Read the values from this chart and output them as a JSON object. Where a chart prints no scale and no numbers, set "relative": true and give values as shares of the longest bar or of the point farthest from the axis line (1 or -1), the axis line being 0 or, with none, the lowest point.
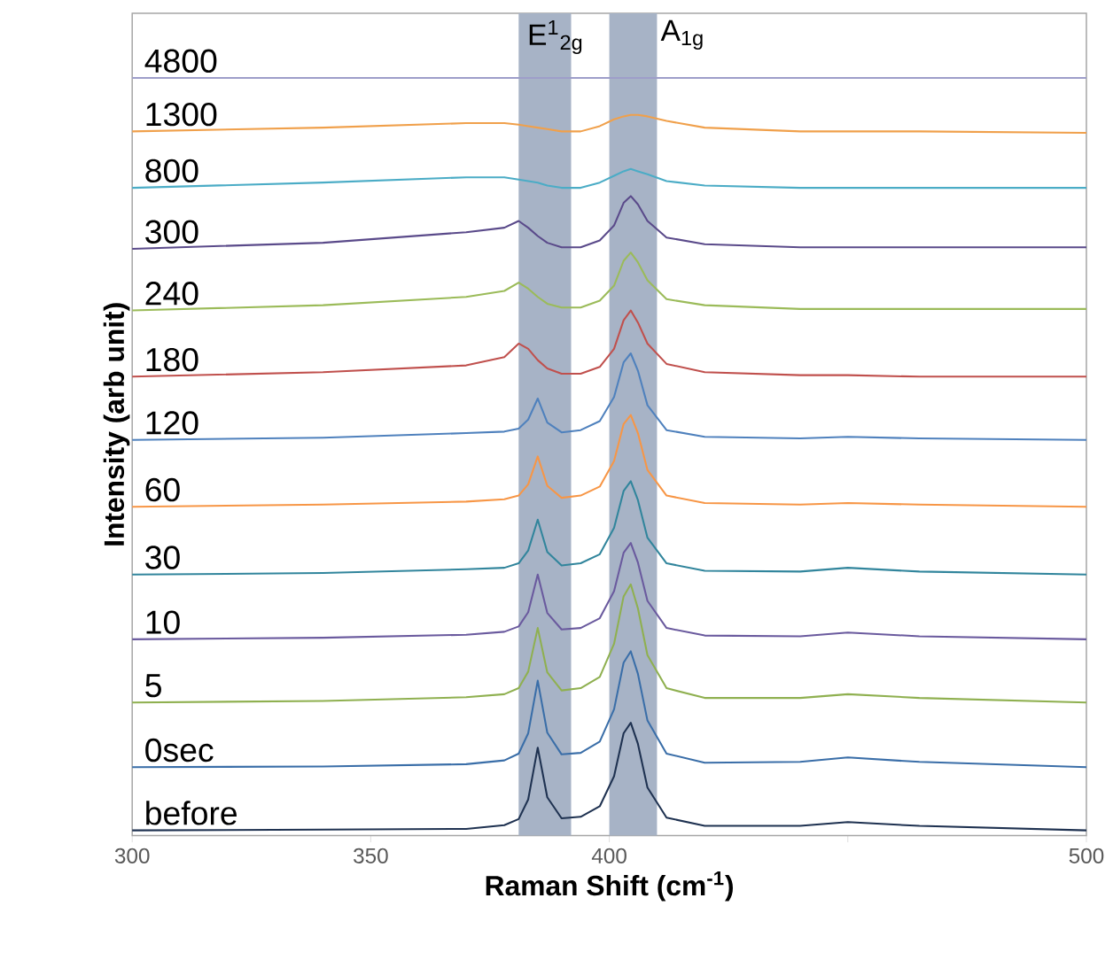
{
  "chart_data": {
    "type": "line",
    "relative": true,
    "xlabel": "Raman Shift (cm$^{-1}$)",
    "ylabel": "Intensity (arb unit)",
    "xlim": [
      300,
      500
    ],
    "xticks": [
      300,
      350,
      400,
      {
        "value": 450,
        "label": null
      },
      500
    ],
    "tick_labels": "x",
    "line_style": "solid",
    "x": [
      300,
      340,
      370,
      378,
      381,
      383,
      385,
      387,
      390,
      394,
      398,
      401,
      403,
      404.5,
      406,
      408,
      412,
      420,
      440,
      450,
      465,
      500
    ],
    "bands": [
      {
        "axis": "x",
        "from": 381,
        "to": 392,
        "label": "E$^{1}$$_{2g}$",
        "color": "#a7b3c6"
      },
      {
        "axis": "x",
        "from": 400,
        "to": 410,
        "label": "A$_{1g}$",
        "color": "#a7b3c6"
      }
    ],
    "series": [
      {
        "name": "4800",
        "color": "#9e9ec9",
        "values": [
          1,
          1,
          1,
          1,
          1,
          1,
          1,
          1,
          1,
          1,
          1,
          1,
          1,
          1,
          1,
          1,
          1,
          1,
          1,
          1,
          1,
          1
        ]
      },
      {
        "name": "1300",
        "color": "#f0a04b",
        "values": [
          0.929,
          0.934,
          0.94,
          0.94,
          0.938,
          0.936,
          0.934,
          0.932,
          0.929,
          0.929,
          0.936,
          0.945,
          0.949,
          0.951,
          0.951,
          0.949,
          0.943,
          0.934,
          0.929,
          0.929,
          0.929,
          0.927
        ]
      },
      {
        "name": "800",
        "color": "#4bacc6",
        "values": [
          0.854,
          0.861,
          0.868,
          0.868,
          0.865,
          0.863,
          0.861,
          0.857,
          0.854,
          0.854,
          0.861,
          0.87,
          0.876,
          0.879,
          0.876,
          0.872,
          0.863,
          0.857,
          0.854,
          0.854,
          0.854,
          0.854
        ]
      },
      {
        "name": "300",
        "color": "#5a4a8a",
        "values": [
          0.773,
          0.781,
          0.795,
          0.801,
          0.81,
          0.801,
          0.79,
          0.781,
          0.775,
          0.775,
          0.784,
          0.804,
          0.834,
          0.843,
          0.832,
          0.81,
          0.788,
          0.779,
          0.775,
          0.775,
          0.775,
          0.775
        ]
      },
      {
        "name": "240",
        "color": "#9bbb59",
        "values": [
          0.691,
          0.698,
          0.709,
          0.717,
          0.728,
          0.72,
          0.709,
          0.7,
          0.695,
          0.695,
          0.704,
          0.724,
          0.757,
          0.768,
          0.755,
          0.731,
          0.706,
          0.698,
          0.693,
          0.693,
          0.693,
          0.693
        ]
      },
      {
        "name": "180",
        "color": "#c0504d",
        "values": [
          0.603,
          0.609,
          0.618,
          0.629,
          0.647,
          0.64,
          0.625,
          0.614,
          0.607,
          0.607,
          0.616,
          0.64,
          0.678,
          0.691,
          0.675,
          0.647,
          0.62,
          0.609,
          0.605,
          0.605,
          0.603,
          0.603
        ]
      },
      {
        "name": "120",
        "color": "#4f81bd",
        "values": [
          0.519,
          0.522,
          0.528,
          0.53,
          0.534,
          0.546,
          0.574,
          0.542,
          0.529,
          0.532,
          0.544,
          0.576,
          0.622,
          0.634,
          0.611,
          0.565,
          0.532,
          0.523,
          0.521,
          0.523,
          0.521,
          0.519
        ]
      },
      {
        "name": "60",
        "color": "#f79646",
        "values": [
          0.43,
          0.433,
          0.437,
          0.44,
          0.445,
          0.46,
          0.497,
          0.458,
          0.442,
          0.445,
          0.457,
          0.491,
          0.54,
          0.552,
          0.528,
          0.479,
          0.445,
          0.435,
          0.433,
          0.435,
          0.433,
          0.43
        ]
      },
      {
        "name": "30",
        "color": "#31859c",
        "values": [
          0.34,
          0.342,
          0.347,
          0.349,
          0.355,
          0.372,
          0.413,
          0.37,
          0.352,
          0.355,
          0.367,
          0.402,
          0.451,
          0.464,
          0.439,
          0.389,
          0.355,
          0.345,
          0.344,
          0.349,
          0.344,
          0.34
        ]
      },
      {
        "name": "10",
        "color": "#6a5a9e",
        "values": [
          0.254,
          0.256,
          0.26,
          0.264,
          0.271,
          0.29,
          0.34,
          0.289,
          0.267,
          0.269,
          0.282,
          0.318,
          0.369,
          0.382,
          0.356,
          0.305,
          0.269,
          0.259,
          0.258,
          0.263,
          0.258,
          0.254
        ]
      },
      {
        "name": "5",
        "color": "#8fb050",
        "values": [
          0.17,
          0.172,
          0.177,
          0.181,
          0.189,
          0.211,
          0.269,
          0.21,
          0.186,
          0.189,
          0.204,
          0.248,
          0.311,
          0.327,
          0.295,
          0.233,
          0.189,
          0.176,
          0.176,
          0.181,
          0.176,
          0.17
        ]
      },
      {
        "name": "0sec",
        "color": "#3a6ea8",
        "values": [
          0.084,
          0.085,
          0.088,
          0.093,
          0.102,
          0.129,
          0.199,
          0.13,
          0.101,
          0.103,
          0.118,
          0.161,
          0.223,
          0.238,
          0.208,
          0.146,
          0.102,
          0.09,
          0.091,
          0.097,
          0.091,
          0.084
        ]
      },
      {
        "name": "before",
        "color": "#1f3251",
        "values": [
          0,
          0.001,
          0.002,
          0.007,
          0.015,
          0.041,
          0.11,
          0.044,
          0.016,
          0.018,
          0.032,
          0.072,
          0.129,
          0.143,
          0.115,
          0.057,
          0.017,
          0.006,
          0.006,
          0.011,
          0.006,
          0
        ]
      }
    ]
  }
}
